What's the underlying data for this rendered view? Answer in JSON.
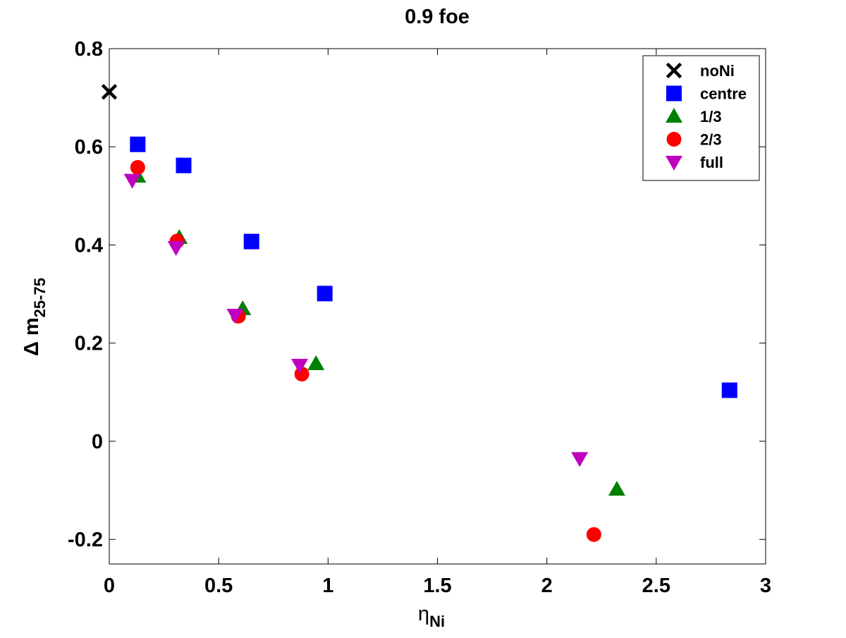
{
  "chart_data": {
    "type": "scatter",
    "title": "0.9 foe",
    "xlabel": {
      "main": "η",
      "sub": "Ni"
    },
    "ylabel": {
      "main": "Δ m",
      "sub": "25-75"
    },
    "xlim": [
      0,
      3
    ],
    "ylim": [
      -0.25,
      0.8
    ],
    "xticks": [
      0,
      0.5,
      1,
      1.5,
      2,
      2.5,
      3
    ],
    "xtick_labels": [
      "0",
      "0.5",
      "1",
      "1.5",
      "2",
      "2.5",
      "3"
    ],
    "yticks": [
      -0.2,
      0,
      0.2,
      0.4,
      0.6,
      0.8
    ],
    "ytick_labels": [
      "-0.2",
      "0",
      "0.2",
      "0.4",
      "0.6",
      "0.8"
    ],
    "grid": false,
    "legend_position": "top-right",
    "series": [
      {
        "name": "noNi",
        "marker": "x",
        "color": "#000000",
        "points": [
          [
            0.0,
            0.712
          ]
        ]
      },
      {
        "name": "centre",
        "marker": "square",
        "color": "#0000ff",
        "points": [
          [
            0.13,
            0.605
          ],
          [
            0.34,
            0.562
          ],
          [
            0.65,
            0.407
          ],
          [
            0.985,
            0.301
          ],
          [
            2.835,
            0.104
          ]
        ]
      },
      {
        "name": "1/3",
        "marker": "triangle-up",
        "color": "#008000",
        "points": [
          [
            0.13,
            0.54
          ],
          [
            0.32,
            0.415
          ],
          [
            0.61,
            0.27
          ],
          [
            0.945,
            0.158
          ],
          [
            2.32,
            -0.098
          ]
        ]
      },
      {
        "name": "2/3",
        "marker": "circle",
        "color": "#ff0000",
        "points": [
          [
            0.13,
            0.558
          ],
          [
            0.31,
            0.408
          ],
          [
            0.59,
            0.255
          ],
          [
            0.88,
            0.137
          ],
          [
            2.215,
            -0.19
          ]
        ]
      },
      {
        "name": "full",
        "marker": "triangle-down",
        "color": "#bf00bf",
        "points": [
          [
            0.105,
            0.532
          ],
          [
            0.305,
            0.395
          ],
          [
            0.575,
            0.257
          ],
          [
            0.87,
            0.155
          ],
          [
            2.15,
            -0.035
          ]
        ]
      }
    ]
  }
}
